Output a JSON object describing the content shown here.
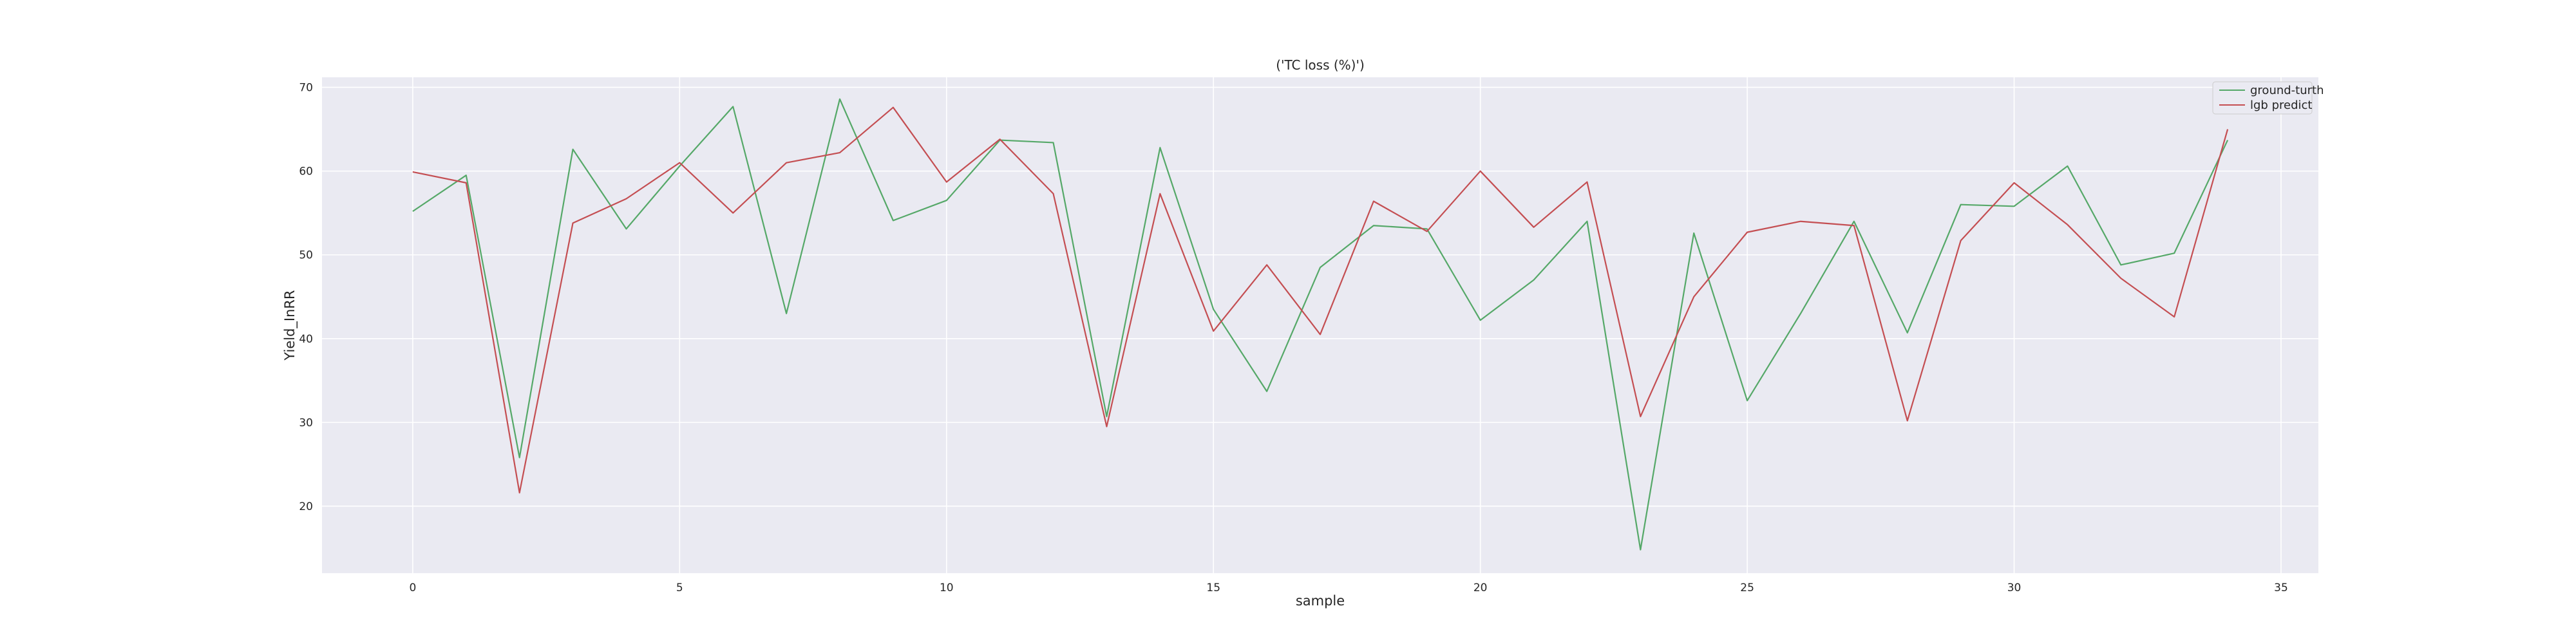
{
  "chart_data": {
    "type": "line",
    "title": "('TC loss (%)')",
    "xlabel": "sample",
    "ylabel": "Yield_InRR",
    "xlim": [
      -1.7,
      35.7
    ],
    "ylim": [
      12.0,
      71.2
    ],
    "xticks": [
      0,
      5,
      10,
      15,
      20,
      25,
      30,
      35
    ],
    "yticks": [
      20,
      30,
      40,
      50,
      60,
      70
    ],
    "grid": true,
    "legend_position": "top-right",
    "x": [
      0,
      1,
      2,
      3,
      4,
      5,
      6,
      7,
      8,
      9,
      10,
      11,
      12,
      13,
      14,
      15,
      16,
      17,
      18,
      19,
      20,
      21,
      22,
      23,
      24,
      25,
      26,
      27,
      28,
      29,
      30,
      31,
      32,
      33,
      34
    ],
    "series": [
      {
        "name": "ground-turth",
        "color": "#55a868",
        "values": [
          55.2,
          59.5,
          25.8,
          62.6,
          53.1,
          60.6,
          67.7,
          43.0,
          68.6,
          54.1,
          56.5,
          63.7,
          63.4,
          30.7,
          62.8,
          43.5,
          33.7,
          48.5,
          53.5,
          53.1,
          42.2,
          47.0,
          54.0,
          14.8,
          52.6,
          32.6,
          43.0,
          54.0,
          40.7,
          56.0,
          55.8,
          60.6,
          48.8,
          50.2,
          63.7
        ]
      },
      {
        "name": "lgb predict",
        "color": "#c44e52",
        "values": [
          59.9,
          58.6,
          21.6,
          53.8,
          56.7,
          61.0,
          55.0,
          61.0,
          62.2,
          67.6,
          58.7,
          63.8,
          57.3,
          29.5,
          57.3,
          40.9,
          48.8,
          40.5,
          56.4,
          52.8,
          60.0,
          53.3,
          58.7,
          30.7,
          45.0,
          52.7,
          54.0,
          53.5,
          30.2,
          51.7,
          58.6,
          53.6,
          47.2,
          42.6,
          65.0
        ]
      }
    ],
    "colors": {
      "plot_background": "#eaeaf2",
      "grid": "#ffffff",
      "text": "#262626"
    }
  }
}
